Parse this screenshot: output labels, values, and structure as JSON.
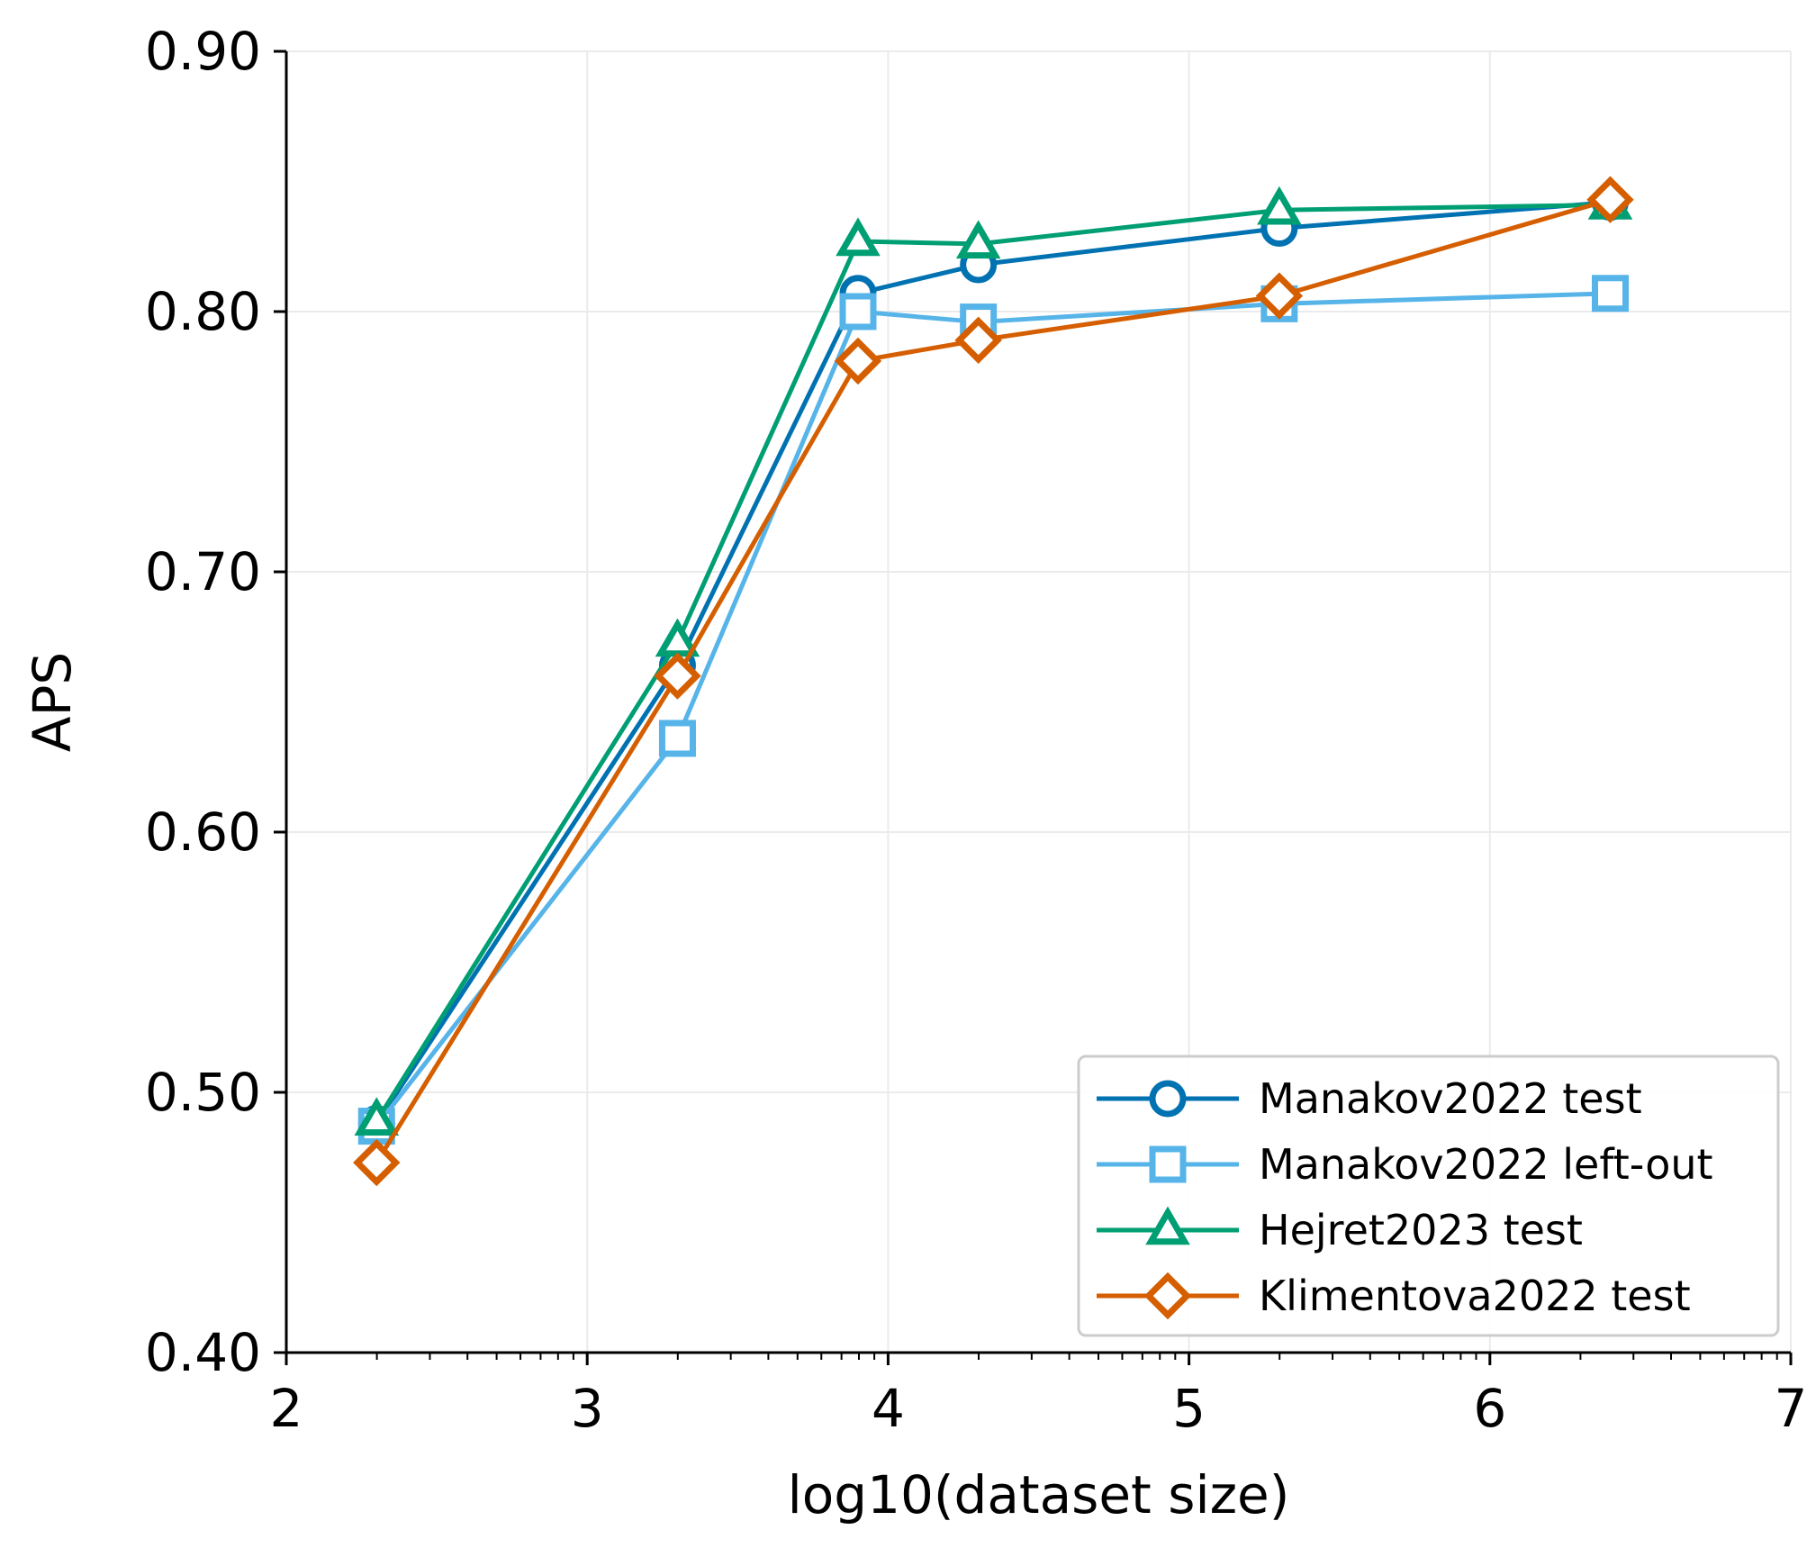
{
  "chart_data": {
    "type": "line",
    "title": "",
    "xlabel": "log10(dataset size)",
    "ylabel": "APS",
    "xlim": [
      2,
      7
    ],
    "ylim": [
      0.4,
      0.9
    ],
    "xticks": [
      "2",
      "3",
      "4",
      "5",
      "6",
      "7"
    ],
    "yticks": [
      "0.40",
      "0.50",
      "0.60",
      "0.70",
      "0.80",
      "0.90"
    ],
    "grid": true,
    "legend_position": "lower-right",
    "series": [
      {
        "name": "Manakov2022 test",
        "color": "#0072B2",
        "marker": "circle",
        "x": [
          2.3,
          3.3,
          3.9,
          4.3,
          5.3,
          6.4
        ],
        "y": [
          0.488,
          0.664,
          0.807,
          0.818,
          0.832,
          0.842
        ]
      },
      {
        "name": "Manakov2022 left-out",
        "color": "#56B4E9",
        "marker": "square",
        "x": [
          2.3,
          3.3,
          3.9,
          4.3,
          5.3,
          6.4
        ],
        "y": [
          0.487,
          0.636,
          0.8,
          0.796,
          0.803,
          0.807
        ]
      },
      {
        "name": "Hejret2023 test",
        "color": "#009E73",
        "marker": "triangle",
        "x": [
          2.3,
          3.3,
          3.9,
          4.3,
          5.3,
          6.4
        ],
        "y": [
          0.489,
          0.673,
          0.827,
          0.826,
          0.839,
          0.841
        ]
      },
      {
        "name": "Klimentova2022 test",
        "color": "#D55E00",
        "marker": "diamond",
        "x": [
          2.3,
          3.3,
          3.9,
          4.3,
          5.3,
          6.4
        ],
        "y": [
          0.473,
          0.66,
          0.781,
          0.789,
          0.806,
          0.843
        ]
      }
    ]
  }
}
